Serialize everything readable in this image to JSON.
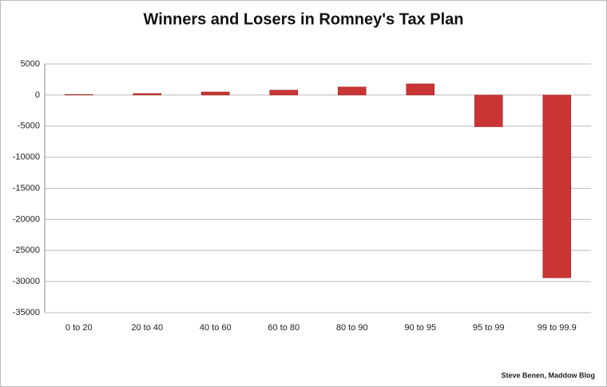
{
  "chart_data": {
    "type": "bar",
    "title": "Winners and Losers in Romney's Tax Plan",
    "categories": [
      "0 to 20",
      "20 to 40",
      "40 to 60",
      "60 to 80",
      "80 to 90",
      "90 to 95",
      "95 to 99",
      "99 to 99.9"
    ],
    "values": [
      100,
      250,
      500,
      800,
      1300,
      1800,
      -5100,
      -29400
    ],
    "color": "#c93535",
    "ylim": [
      -35000,
      5000
    ],
    "yticks": [
      -35000,
      -30000,
      -25000,
      -20000,
      -15000,
      -10000,
      -5000,
      0,
      5000
    ],
    "grid": true,
    "source": "Steve Benen, Maddow Blog"
  }
}
